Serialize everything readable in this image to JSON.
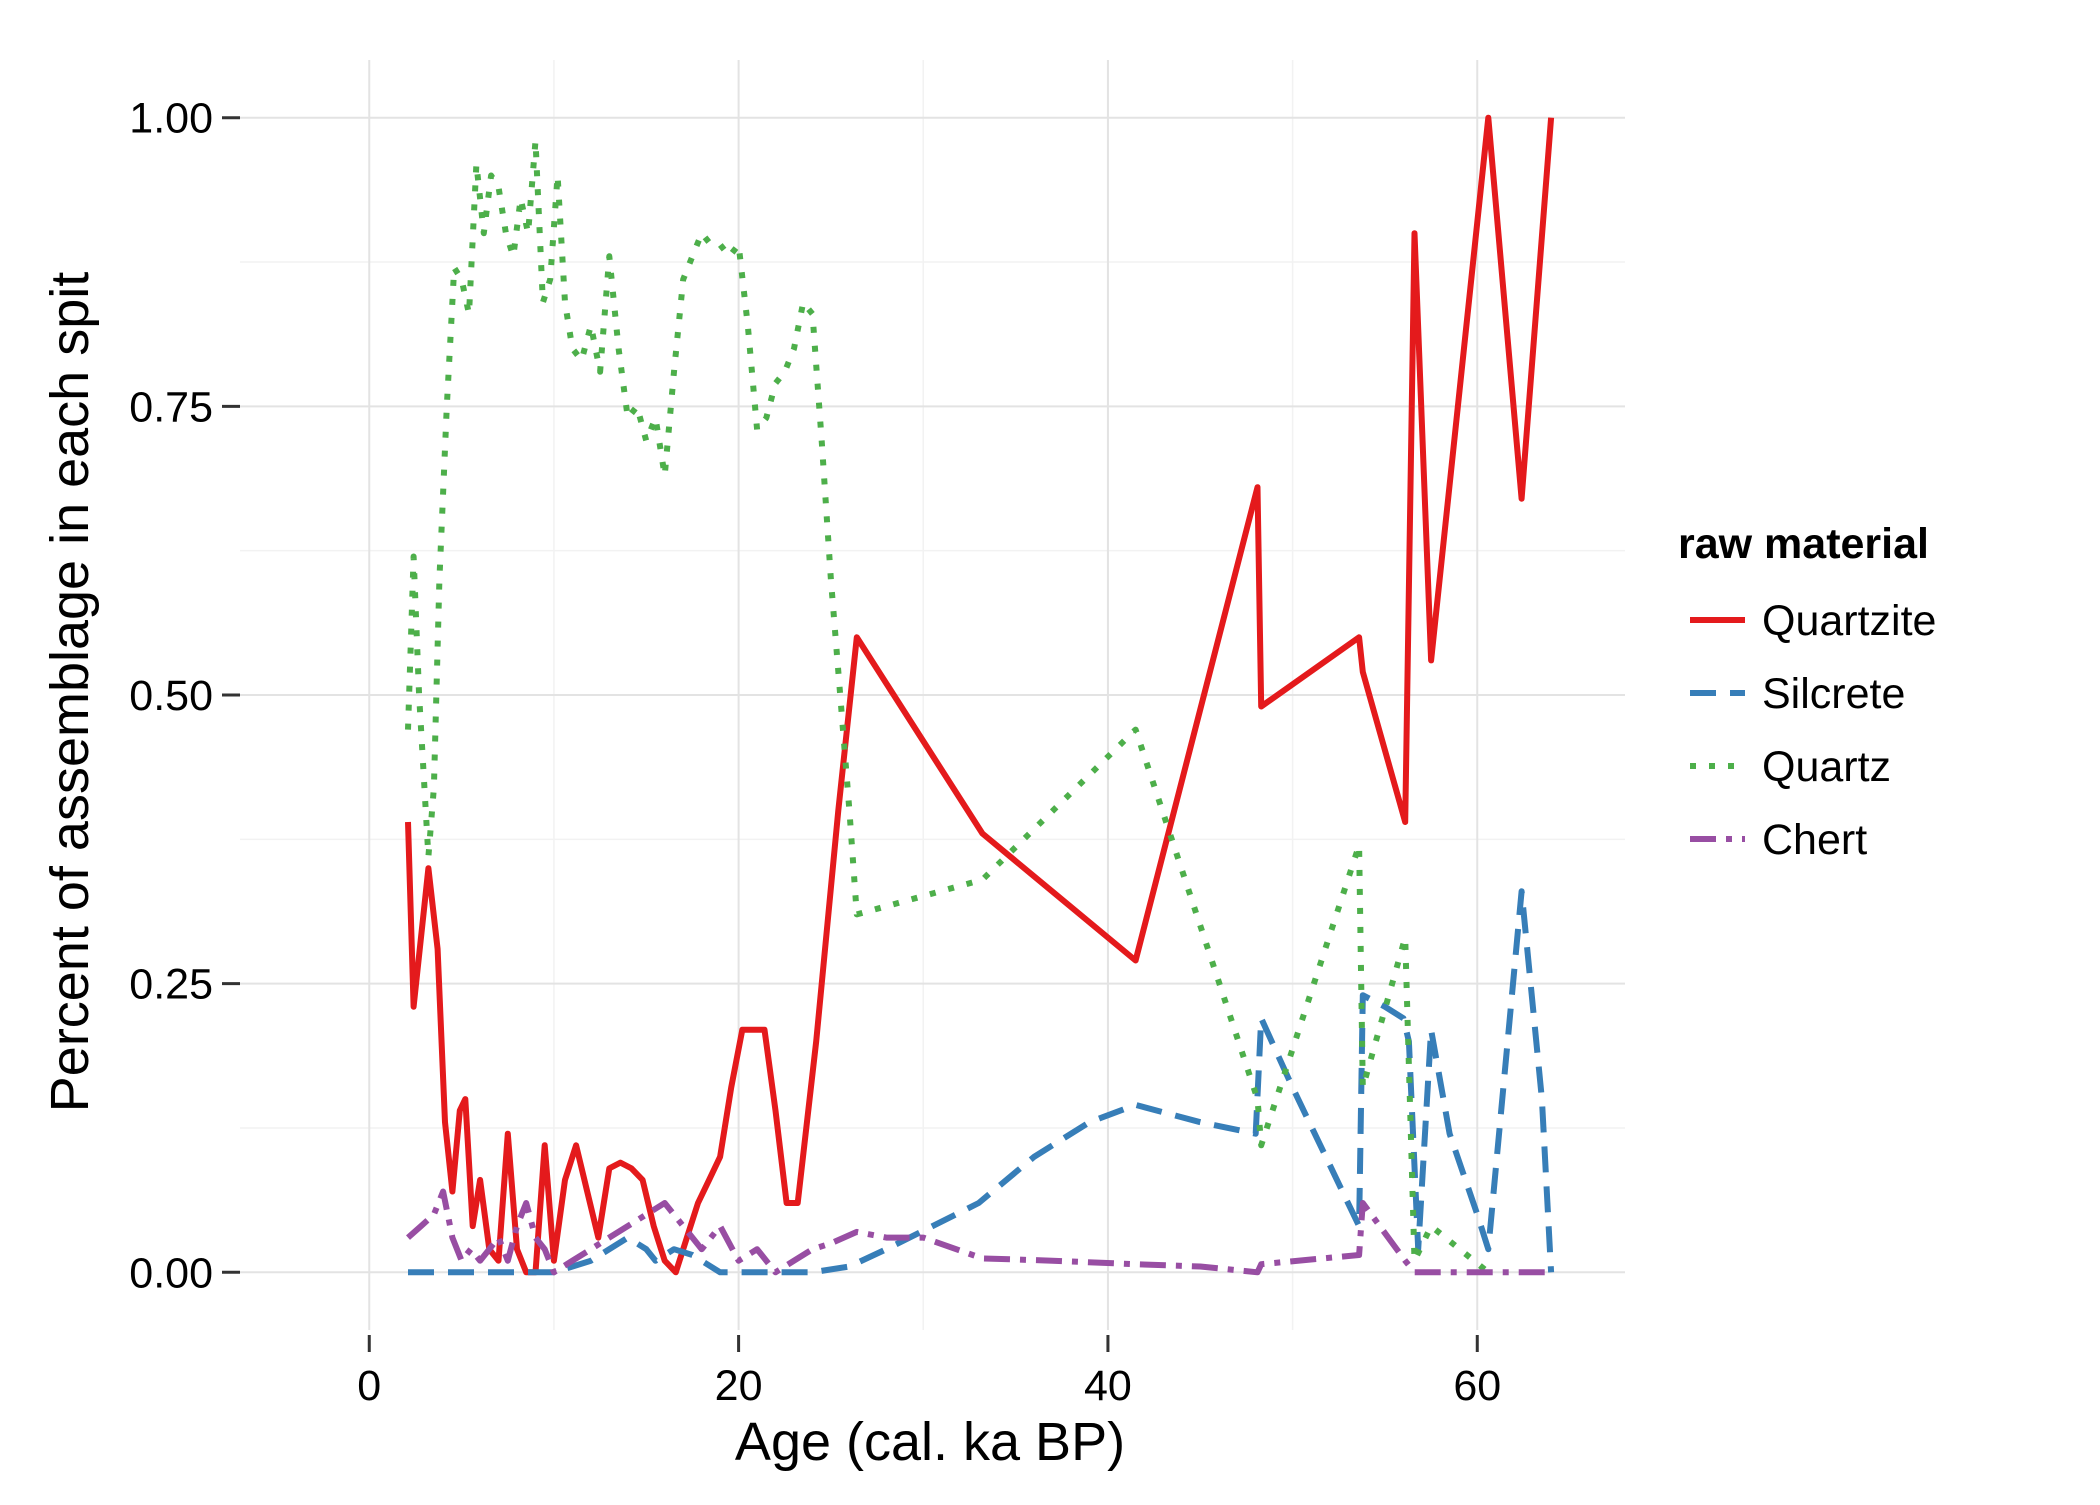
{
  "chart_data": {
    "type": "line",
    "xlabel": "Age (cal. ka BP)",
    "ylabel": "Percent of assemblage in each spit",
    "xlim": [
      -7,
      68
    ],
    "ylim": [
      -0.05,
      1.05
    ],
    "x_ticks": [
      0,
      20,
      40,
      60
    ],
    "y_ticks": [
      0,
      0.25,
      0.5,
      0.75,
      1
    ],
    "x_tick_labels": [
      "0",
      "20",
      "40",
      "60"
    ],
    "y_tick_labels": [
      "0.00",
      "0.25",
      "0.50",
      "0.75",
      "1.00"
    ],
    "grid": true,
    "legend": {
      "title": "raw material",
      "placement": "right"
    },
    "series": [
      {
        "name": "Quartzite",
        "color": "#e41a1c",
        "dash": "solid",
        "x": [
          2.1,
          2.4,
          3.2,
          3.7,
          4.1,
          4.5,
          4.9,
          5.2,
          5.6,
          6.0,
          6.5,
          7.0,
          7.5,
          8.0,
          8.5,
          9.0,
          9.5,
          10.0,
          10.6,
          11.2,
          11.8,
          12.4,
          13.0,
          13.6,
          14.2,
          14.8,
          15.4,
          16.0,
          16.6,
          17.2,
          17.8,
          18.4,
          19.0,
          19.6,
          20.2,
          20.8,
          21.4,
          22.0,
          22.6,
          23.2,
          24.2,
          25.4,
          26.4,
          33.2,
          41.5,
          48.1,
          48.3,
          53.6,
          53.8,
          56.1,
          56.6,
          57.5,
          60.6,
          62.4,
          64.0
        ],
        "y": [
          0.39,
          0.23,
          0.35,
          0.28,
          0.13,
          0.07,
          0.14,
          0.15,
          0.04,
          0.08,
          0.02,
          0.01,
          0.12,
          0.02,
          0.0,
          0.0,
          0.11,
          0.01,
          0.08,
          0.11,
          0.07,
          0.03,
          0.09,
          0.095,
          0.09,
          0.08,
          0.04,
          0.01,
          0.0,
          0.03,
          0.06,
          0.08,
          0.1,
          0.16,
          0.21,
          0.21,
          0.21,
          0.14,
          0.06,
          0.06,
          0.2,
          0.4,
          0.55,
          0.38,
          0.27,
          0.68,
          0.49,
          0.55,
          0.52,
          0.39,
          0.9,
          0.53,
          1.0,
          0.67,
          1.0
        ]
      },
      {
        "name": "Silcrete",
        "color": "#377eb8",
        "dash": "dashed",
        "x": [
          2.1,
          6.0,
          10.0,
          12.0,
          14.0,
          15.0,
          15.5,
          16.5,
          17.5,
          19.0,
          20.0,
          21.0,
          22.0,
          23.0,
          24.0,
          26.0,
          28.0,
          33.0,
          36.0,
          39.0,
          41.5,
          45.0,
          48.0,
          48.3,
          50.0,
          53.6,
          53.8,
          55.0,
          56.0,
          56.3,
          56.8,
          57.5,
          58.5,
          60.0,
          60.6,
          62.4,
          63.5,
          64.0
        ],
        "y": [
          0.0,
          0.0,
          0.0,
          0.01,
          0.03,
          0.02,
          0.01,
          0.02,
          0.015,
          0.0,
          0.0,
          0.0,
          0.0,
          0.0,
          0.0,
          0.005,
          0.02,
          0.06,
          0.1,
          0.13,
          0.145,
          0.13,
          0.12,
          0.22,
          0.16,
          0.04,
          0.24,
          0.23,
          0.22,
          0.2,
          0.02,
          0.21,
          0.12,
          0.05,
          0.02,
          0.33,
          0.15,
          0.0
        ]
      },
      {
        "name": "Quartz",
        "color": "#4daf4a",
        "dash": "dotted",
        "x": [
          2.1,
          2.4,
          2.7,
          3.2,
          3.5,
          3.8,
          4.2,
          4.6,
          5.0,
          5.4,
          5.8,
          6.2,
          6.6,
          7.0,
          7.4,
          7.8,
          8.2,
          8.6,
          9.0,
          9.4,
          9.8,
          10.2,
          10.6,
          11.0,
          11.5,
          12.0,
          12.5,
          13.0,
          13.5,
          14.0,
          14.5,
          15.0,
          15.5,
          16.0,
          16.5,
          17.0,
          17.5,
          18.0,
          18.5,
          19.0,
          19.5,
          20.0,
          20.5,
          21.0,
          21.5,
          22.0,
          22.5,
          23.0,
          23.5,
          24.0,
          24.5,
          25.0,
          25.5,
          26.0,
          26.4,
          33.2,
          41.5,
          48.1,
          48.3,
          53.6,
          53.8,
          56.1,
          56.6,
          57.5,
          60.6
        ],
        "y": [
          0.47,
          0.62,
          0.5,
          0.36,
          0.42,
          0.6,
          0.75,
          0.87,
          0.86,
          0.83,
          0.96,
          0.9,
          0.95,
          0.94,
          0.9,
          0.88,
          0.93,
          0.9,
          0.98,
          0.84,
          0.86,
          0.95,
          0.84,
          0.8,
          0.79,
          0.82,
          0.78,
          0.88,
          0.8,
          0.74,
          0.75,
          0.72,
          0.74,
          0.69,
          0.78,
          0.86,
          0.88,
          0.9,
          0.89,
          0.89,
          0.88,
          0.89,
          0.82,
          0.73,
          0.74,
          0.77,
          0.78,
          0.8,
          0.84,
          0.83,
          0.72,
          0.6,
          0.5,
          0.4,
          0.31,
          0.34,
          0.47,
          0.15,
          0.11,
          0.37,
          0.16,
          0.29,
          0.01,
          0.04,
          0.0
        ]
      },
      {
        "name": "Chert",
        "color": "#984ea3",
        "dash": "dashdot",
        "x": [
          2.1,
          2.8,
          3.5,
          4.0,
          4.5,
          5.0,
          5.5,
          6.0,
          6.5,
          7.0,
          7.5,
          8.0,
          8.5,
          9.0,
          9.5,
          10.0,
          11.0,
          12.0,
          13.0,
          14.0,
          15.0,
          16.0,
          17.0,
          18.0,
          19.0,
          20.0,
          21.0,
          22.0,
          23.0,
          24.0,
          25.0,
          26.4,
          28.0,
          30.0,
          33.2,
          37.0,
          41.5,
          45.0,
          48.1,
          48.3,
          53.6,
          53.8,
          56.1,
          56.6,
          57.5,
          60.6,
          64.0
        ],
        "y": [
          0.03,
          0.04,
          0.05,
          0.07,
          0.03,
          0.01,
          0.02,
          0.01,
          0.02,
          0.03,
          0.01,
          0.04,
          0.06,
          0.03,
          0.02,
          0.0,
          0.01,
          0.02,
          0.03,
          0.04,
          0.05,
          0.06,
          0.04,
          0.02,
          0.04,
          0.01,
          0.02,
          0.0,
          0.01,
          0.02,
          0.025,
          0.035,
          0.03,
          0.03,
          0.012,
          0.01,
          0.007,
          0.005,
          0.0,
          0.007,
          0.015,
          0.06,
          0.01,
          0.0,
          0.0,
          0.0,
          0.0
        ]
      }
    ]
  }
}
